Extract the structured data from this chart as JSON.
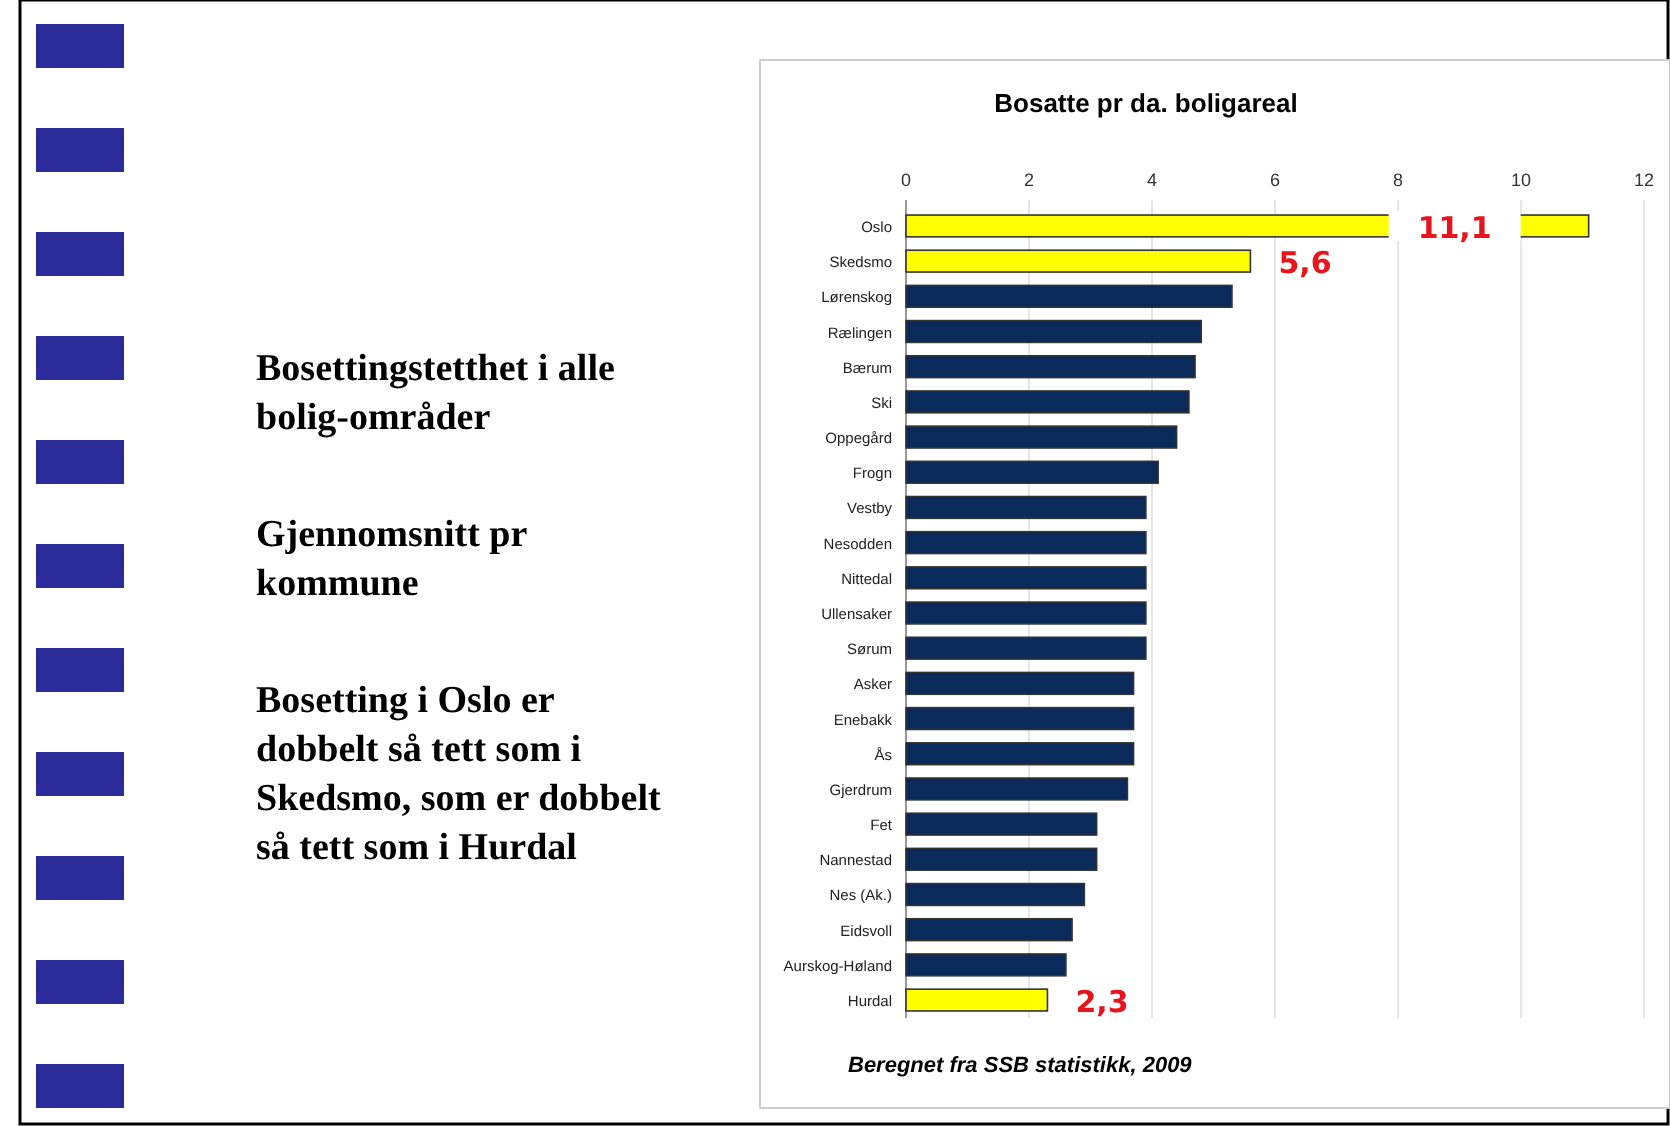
{
  "chart_data": {
    "type": "bar",
    "orientation": "horizontal",
    "title": "Bosatte pr da. boligareal",
    "categories": [
      "Oslo",
      "Skedsmo",
      "Lørenskog",
      "Rælingen",
      "Bærum",
      "Ski",
      "Oppegård",
      "Frogn",
      "Vestby",
      "Nesodden",
      "Nittedal",
      "Ullensaker",
      "Sørum",
      "Asker",
      "Enebakk",
      "Ås",
      "Gjerdrum",
      "Fet",
      "Nannestad",
      "Nes (Ak.)",
      "Eidsvoll",
      "Aurskog-Høland",
      "Hurdal"
    ],
    "values": [
      11.1,
      5.6,
      5.3,
      4.8,
      4.7,
      4.6,
      4.4,
      4.1,
      3.9,
      3.9,
      3.9,
      3.9,
      3.9,
      3.7,
      3.7,
      3.7,
      3.6,
      3.1,
      3.1,
      2.9,
      2.7,
      2.6,
      2.3
    ],
    "colors": [
      "#ffff00",
      "#ffff00",
      "#0b2a5c",
      "#0b2a5c",
      "#0b2a5c",
      "#0b2a5c",
      "#0b2a5c",
      "#0b2a5c",
      "#0b2a5c",
      "#0b2a5c",
      "#0b2a5c",
      "#0b2a5c",
      "#0b2a5c",
      "#0b2a5c",
      "#0b2a5c",
      "#0b2a5c",
      "#0b2a5c",
      "#0b2a5c",
      "#0b2a5c",
      "#0b2a5c",
      "#0b2a5c",
      "#0b2a5c",
      "#ffff00"
    ],
    "value_labels": [
      "11,1",
      "5,6",
      null,
      null,
      null,
      null,
      null,
      null,
      null,
      null,
      null,
      null,
      null,
      null,
      null,
      null,
      null,
      null,
      null,
      null,
      null,
      null,
      "2,3"
    ],
    "xlim": [
      0,
      12
    ],
    "xticks": [
      0,
      2,
      4,
      6,
      8,
      10,
      12
    ],
    "grid": "x",
    "annotations": [
      "Bosettingstetthet i alle bolig-områder",
      "Gjennomsnitt pr kommune",
      "Bosetting i Oslo er dobbelt så tett som i Skedsmo, som er dobbelt så tett som i Hurdal",
      "Beregnet fra SSB statistikk, 2009"
    ]
  }
}
